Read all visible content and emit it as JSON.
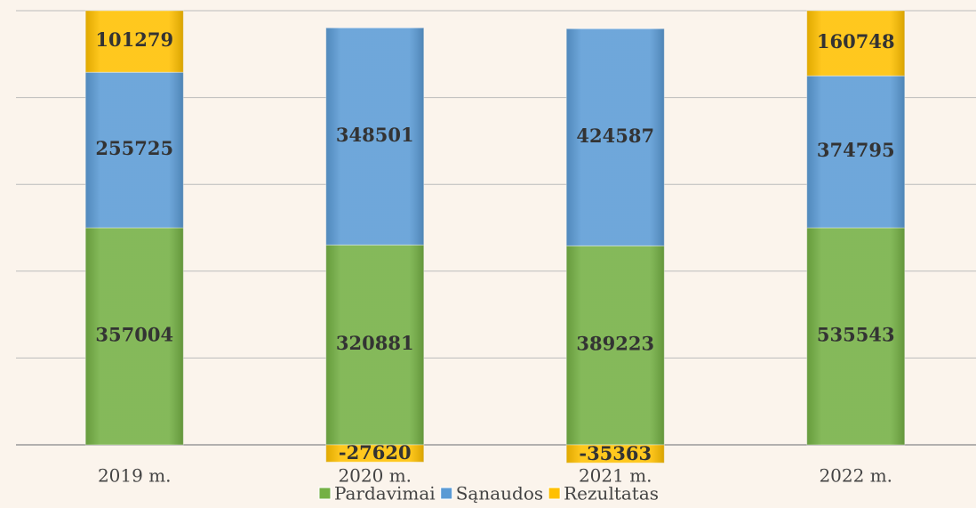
{
  "chart_data": {
    "type": "bar",
    "stacking": "percent",
    "categories": [
      "2019 m.",
      "2020 m.",
      "2021 m.",
      "2022 m."
    ],
    "series": [
      {
        "name": "Pardavimai",
        "color": "#74b044",
        "values": [
          357004,
          320881,
          389223,
          535543
        ]
      },
      {
        "name": "Sąnaudos",
        "color": "#5b9bd5",
        "values": [
          255725,
          348501,
          424587,
          374795
        ]
      },
      {
        "name": "Rezultatas",
        "color": "#ffc000",
        "values": [
          101279,
          -27620,
          -35363,
          160748
        ]
      }
    ],
    "ylim": [
      0,
      100
    ],
    "yticks": [
      0,
      20,
      40,
      60,
      80,
      100
    ],
    "grid": true,
    "legend": "bottom"
  }
}
